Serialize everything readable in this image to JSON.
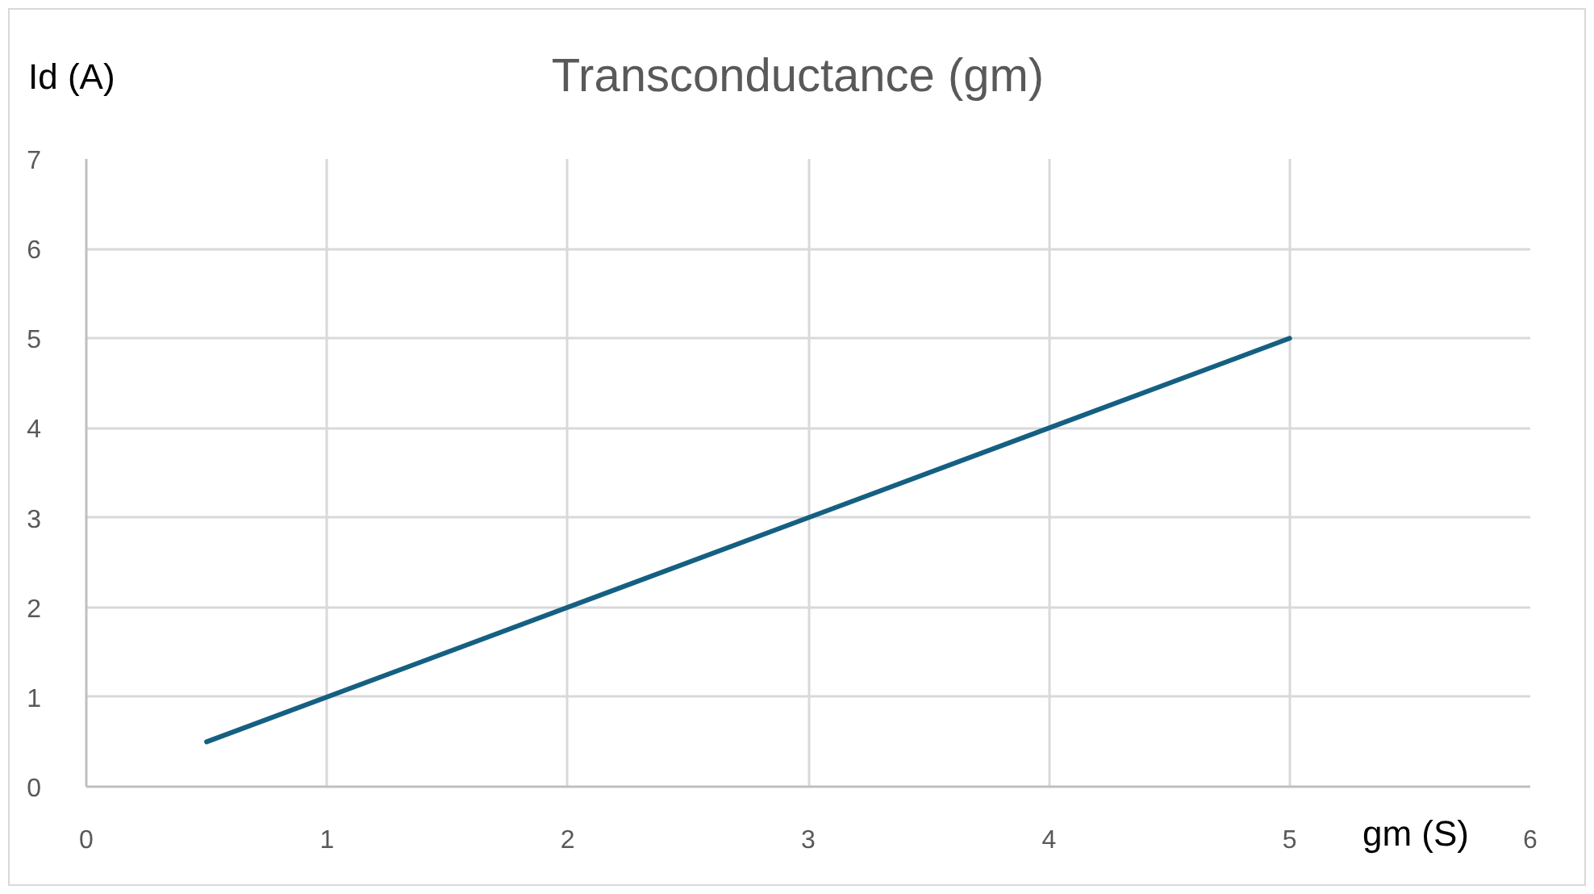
{
  "chart_data": {
    "type": "line",
    "title": "Transconductance (gm)",
    "xlabel": "gm (S)",
    "ylabel": "Id (A)",
    "x": [
      0.5,
      5
    ],
    "series": [
      {
        "color": "#156082",
        "values": [
          0.5,
          5
        ]
      }
    ],
    "xlim": [
      0,
      6
    ],
    "ylim": [
      0,
      7
    ],
    "xticks": [
      0,
      1,
      2,
      3,
      4,
      5,
      6
    ],
    "yticks": [
      0,
      1,
      2,
      3,
      4,
      5,
      6,
      7
    ],
    "grid": true,
    "line_style": "solid"
  }
}
